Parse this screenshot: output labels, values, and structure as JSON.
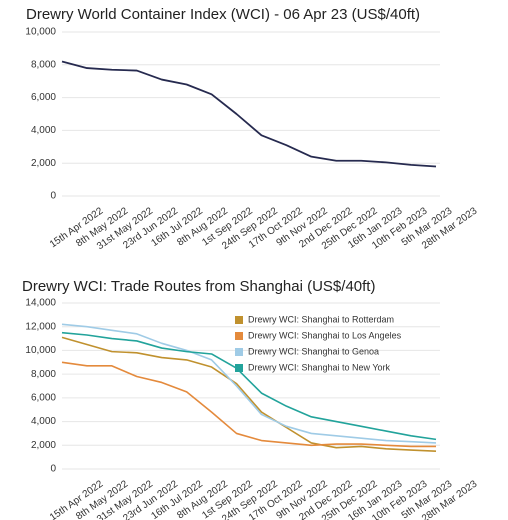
{
  "chart_data": [
    {
      "type": "line",
      "title": "Drewry World Container Index (WCI) - 06 Apr 23 (US$/40ft)",
      "categories": [
        "15th Apr 2022",
        "8th May 2022",
        "31st May 2022",
        "23rd Jun 2022",
        "16th Jul 2022",
        "8th Aug 2022",
        "1st Sep 2022",
        "24th Sep 2022",
        "17th Oct 2022",
        "9th Nov 2022",
        "2nd Dec 2022",
        "25th Dec 2022",
        "16th Jan 2023",
        "10th Feb 2023",
        "5th Mar 2023",
        "28th Mar 2023"
      ],
      "series": [
        {
          "name": "WCI",
          "color": "#262a4f",
          "values": [
            8200,
            7800,
            7700,
            7650,
            7100,
            6800,
            6200,
            5000,
            3700,
            3100,
            2400,
            2150,
            2150,
            2050,
            1900,
            1800
          ]
        }
      ],
      "ylim": [
        0,
        10000
      ],
      "yticks": [
        0,
        {
          "value": 2000,
          "label": "2,000"
        },
        {
          "value": 4000,
          "label": "4,000"
        },
        {
          "value": 6000,
          "label": "6,000"
        },
        {
          "value": 8000,
          "label": "8,000"
        },
        {
          "value": 10000,
          "label": "10,000"
        }
      ],
      "grid": true
    },
    {
      "type": "line",
      "title": "Drewry WCI: Trade Routes from Shanghai (US$/40ft)",
      "categories": [
        "15th Apr 2022",
        "8th May 2022",
        "31st May 2022",
        "23rd Jun 2022",
        "16th Jul 2022",
        "8th Aug 2022",
        "1st Sep 2022",
        "24th Sep 2022",
        "17th Oct 2022",
        "9th Nov 2022",
        "2nd Dec 2022",
        "25th Dec 2022",
        "16th Jan 2023",
        "10th Feb 2023",
        "5th Mar 2023",
        "28th Mar 2023"
      ],
      "series": [
        {
          "name": "Drewry WCI: Shanghai to Rotterdam",
          "color": "#c0912e",
          "values": [
            11100,
            10500,
            9900,
            9800,
            9400,
            9200,
            8600,
            7200,
            4800,
            3500,
            2200,
            1800,
            1900,
            1700,
            1600,
            1500
          ]
        },
        {
          "name": "Drewry WCI: Shanghai to Los Angeles",
          "color": "#e48a3c",
          "values": [
            9000,
            8700,
            8700,
            7800,
            7300,
            6500,
            4800,
            3000,
            2400,
            2200,
            2000,
            2100,
            2100,
            2000,
            1900,
            1900
          ]
        },
        {
          "name": "Drewry WCI: Shanghai to Genoa",
          "color": "#9fcbe6",
          "values": [
            12200,
            12000,
            11700,
            11400,
            10600,
            10000,
            9200,
            7000,
            4600,
            3600,
            3000,
            2800,
            2600,
            2400,
            2300,
            2200
          ]
        },
        {
          "name": "Drewry WCI: Shanghai to New York",
          "color": "#22a39b",
          "values": [
            11500,
            11300,
            11000,
            10800,
            10200,
            9900,
            9700,
            8500,
            6400,
            5300,
            4400,
            4000,
            3600,
            3200,
            2800,
            2500
          ]
        }
      ],
      "ylim": [
        0,
        14000
      ],
      "yticks": [
        0,
        {
          "value": 2000,
          "label": "2,000"
        },
        {
          "value": 4000,
          "label": "4,000"
        },
        {
          "value": 6000,
          "label": "6,000"
        },
        {
          "value": 8000,
          "label": "8,000"
        },
        {
          "value": 10000,
          "label": "10,000"
        },
        {
          "value": 12000,
          "label": "12,000"
        },
        {
          "value": 14000,
          "label": "14,000"
        }
      ],
      "grid": true,
      "legend": "upper right"
    }
  ]
}
